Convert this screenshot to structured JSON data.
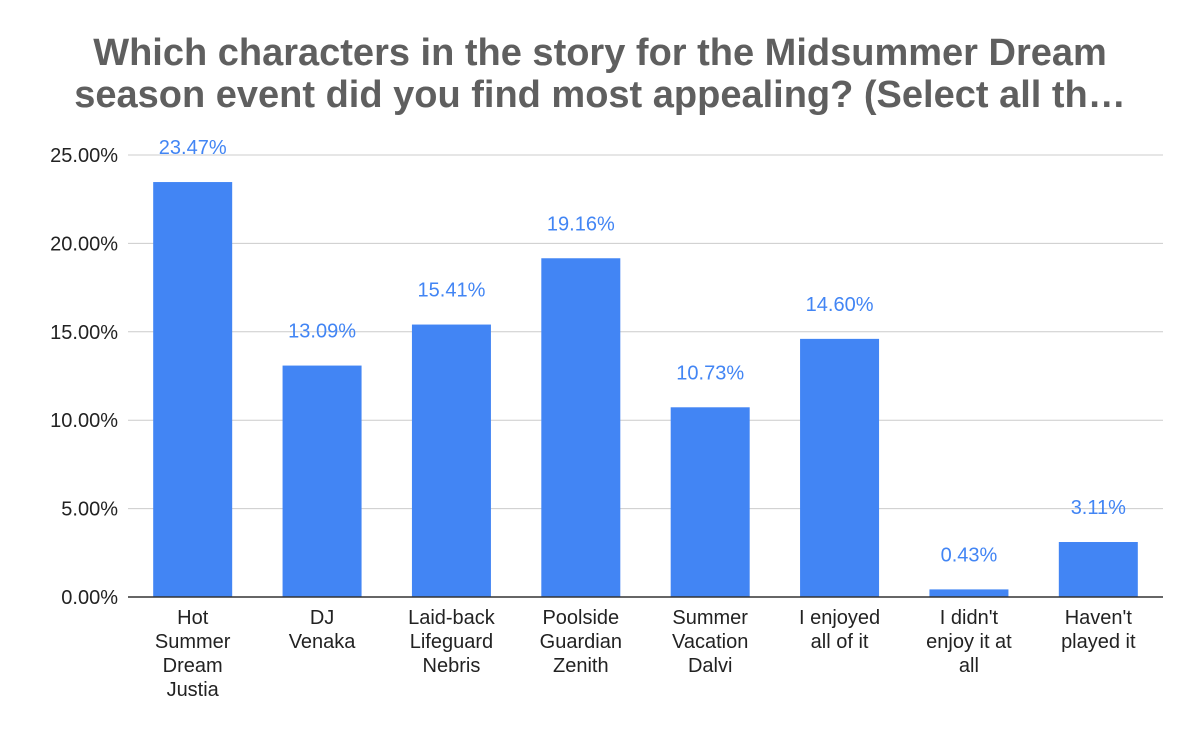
{
  "chart_data": {
    "type": "bar",
    "title_lines": [
      "Which characters in the story for the Midsummer Dream",
      "season event did you find most appealing? (Select all th…"
    ],
    "categories": [
      [
        "Hot",
        "Summer",
        "Dream",
        "Justia"
      ],
      [
        "DJ",
        "Venaka"
      ],
      [
        "Laid-back",
        "Lifeguard",
        "Nebris"
      ],
      [
        "Poolside",
        "Guardian",
        "Zenith"
      ],
      [
        "Summer",
        "Vacation",
        "Dalvi"
      ],
      [
        "I enjoyed",
        "all of it"
      ],
      [
        "I didn't",
        "enjoy it at",
        "all"
      ],
      [
        "Haven't",
        "played it"
      ]
    ],
    "values": [
      23.47,
      13.09,
      15.41,
      19.16,
      10.73,
      14.6,
      0.43,
      3.11
    ],
    "data_labels": [
      "23.47%",
      "13.09%",
      "15.41%",
      "19.16%",
      "10.73%",
      "14.60%",
      "0.43%",
      "3.11%"
    ],
    "y_ticks": [
      0,
      5,
      10,
      15,
      20,
      25
    ],
    "y_tick_labels": [
      "0.00%",
      "5.00%",
      "10.00%",
      "15.00%",
      "20.00%",
      "25.00%"
    ],
    "ylim": [
      0,
      25
    ],
    "grid": true,
    "xlabel": "",
    "ylabel": "",
    "bar_color": "#4285f4",
    "label_color": "#4285f4",
    "inside_label_color": "#ffffff",
    "gridline_color": "#cccccc",
    "axis_color": "#333333",
    "title_color": "#5f5f5f"
  }
}
